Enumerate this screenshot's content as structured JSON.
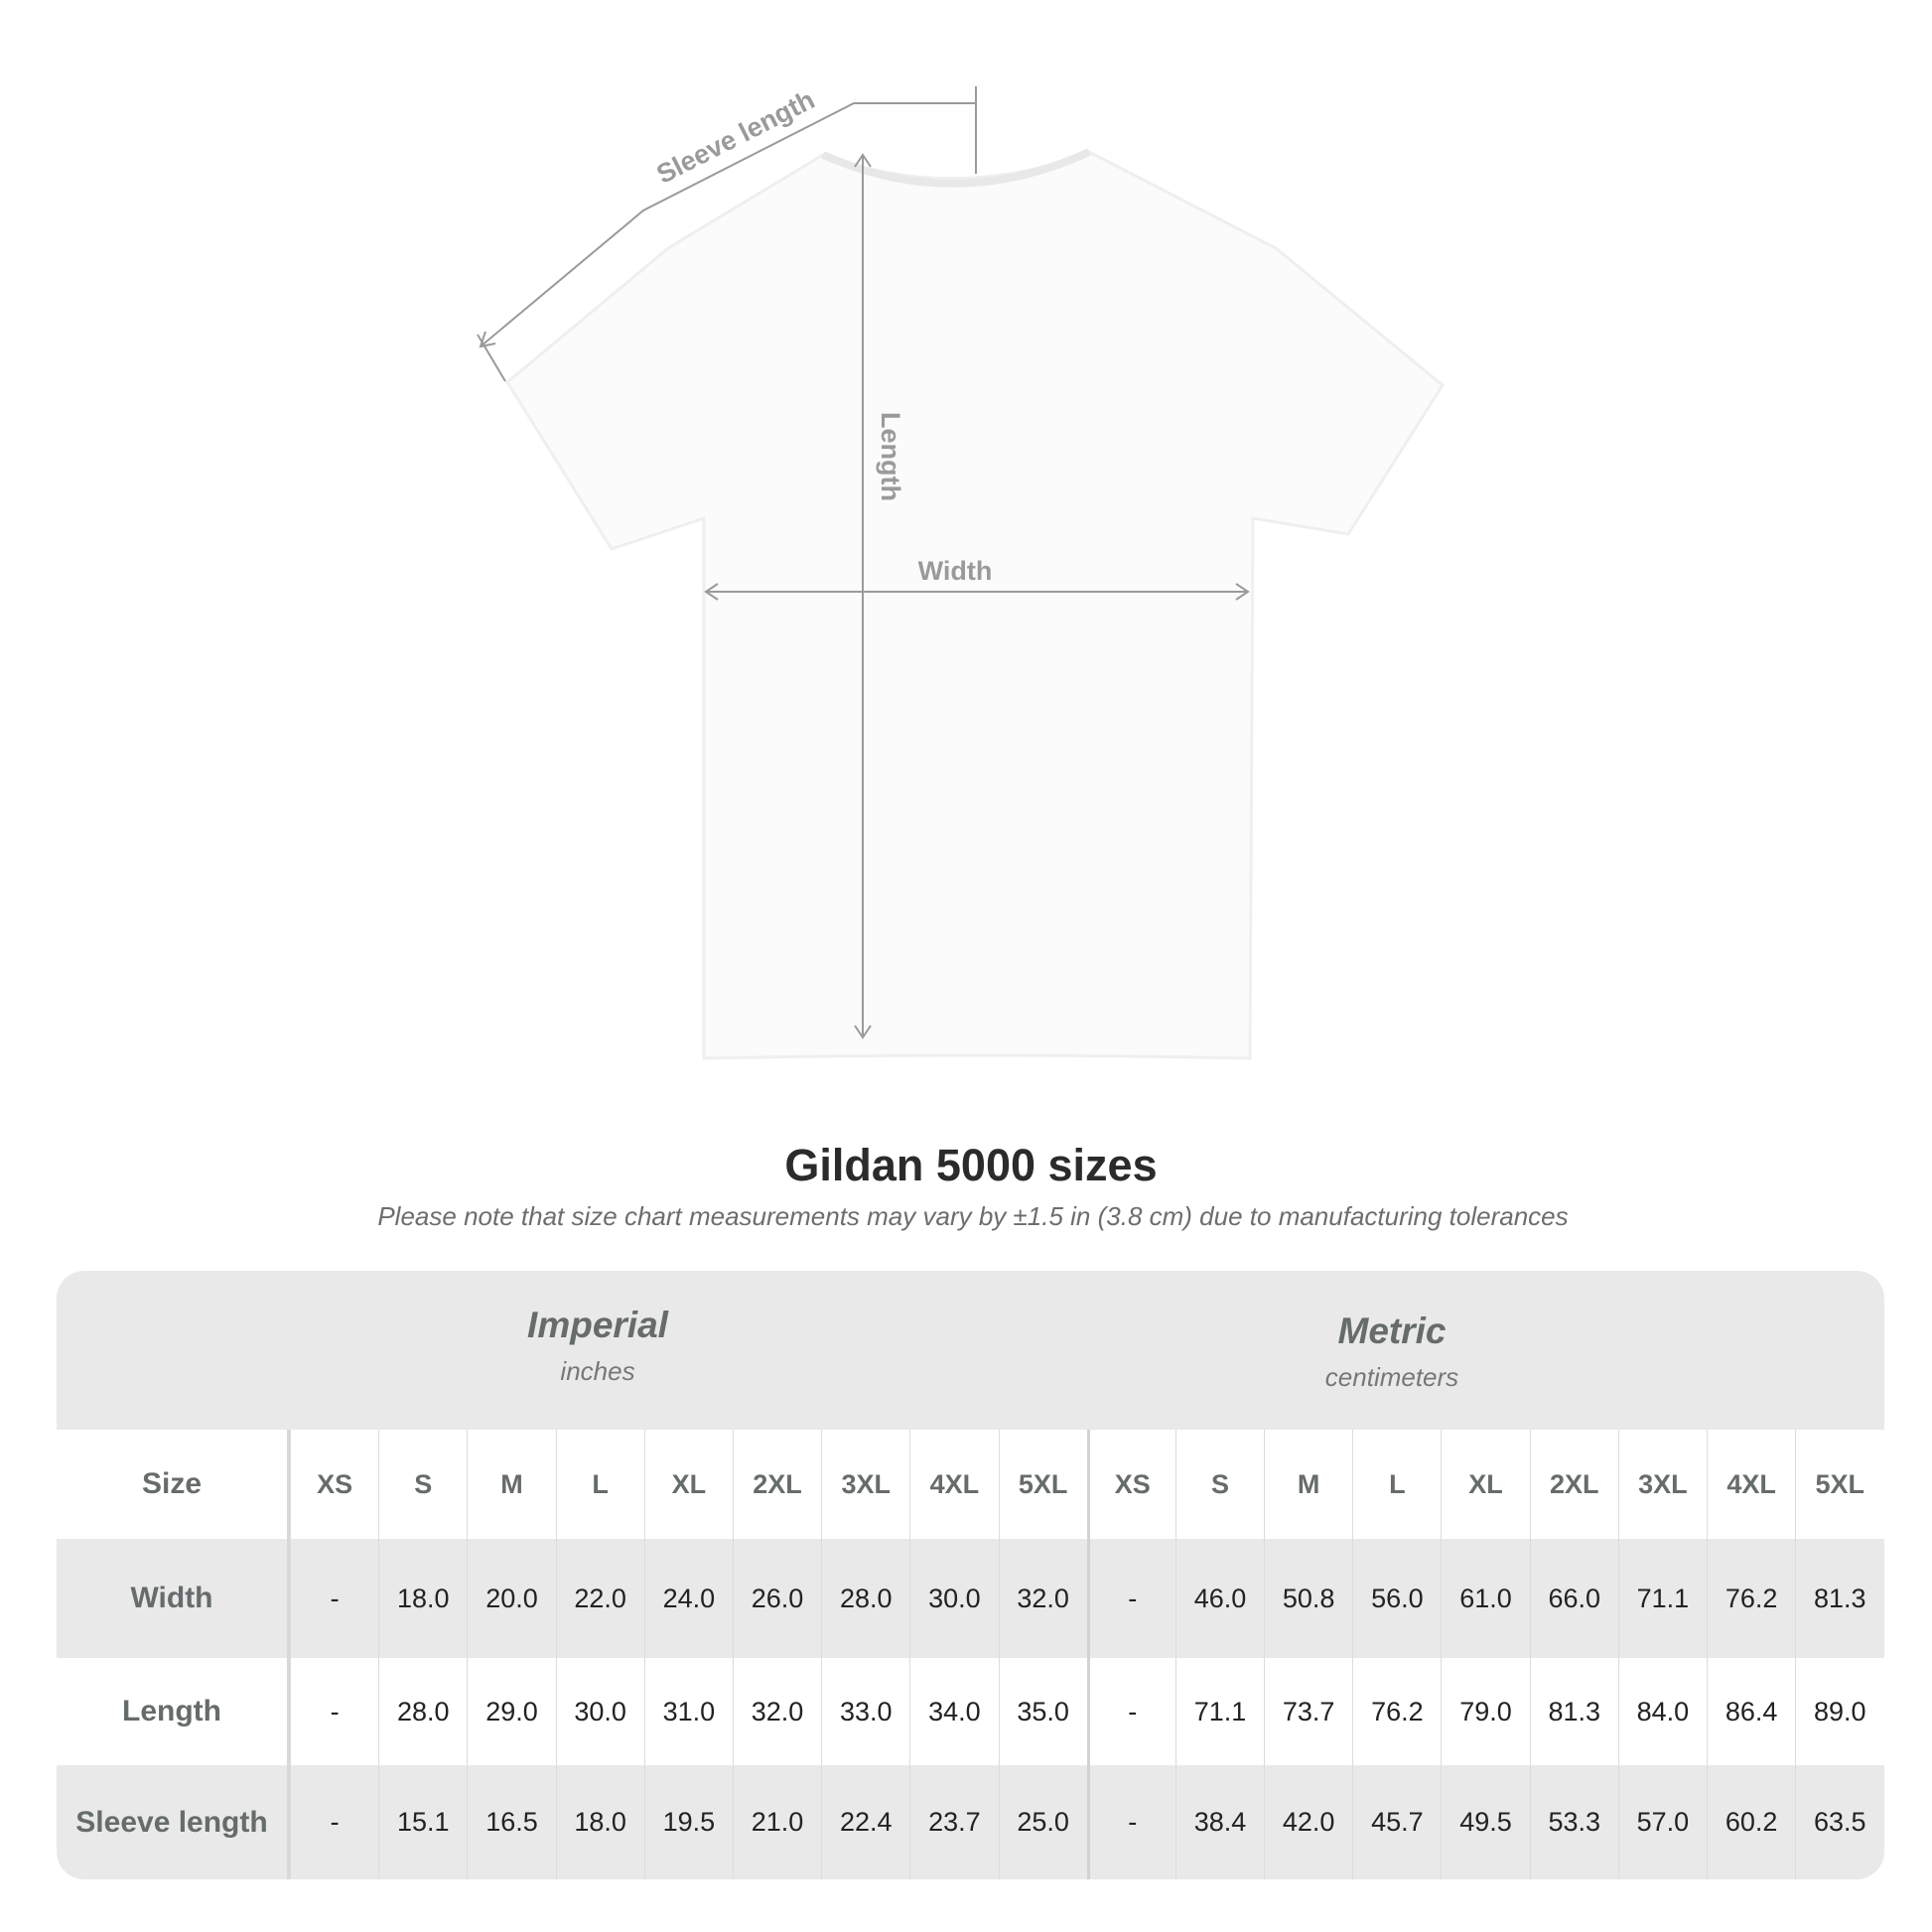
{
  "diagram": {
    "labels": {
      "sleeve": "Sleeve length",
      "length": "Length",
      "width": "Width"
    }
  },
  "title": "Gildan 5000 sizes",
  "note": "Please note that size chart measurements may vary by ±1.5 in (3.8 cm) due to manufacturing tolerances",
  "table": {
    "imperial": {
      "title": "Imperial",
      "unit": "inches"
    },
    "metric": {
      "title": "Metric",
      "unit": "centimeters"
    },
    "size_label": "Size",
    "sizes": [
      "XS",
      "S",
      "M",
      "L",
      "XL",
      "2XL",
      "3XL",
      "4XL",
      "5XL"
    ],
    "rows": [
      {
        "label": "Width",
        "imperial": [
          "-",
          "18.0",
          "20.0",
          "22.0",
          "24.0",
          "26.0",
          "28.0",
          "30.0",
          "32.0"
        ],
        "metric": [
          "-",
          "46.0",
          "50.8",
          "56.0",
          "61.0",
          "66.0",
          "71.1",
          "76.2",
          "81.3"
        ]
      },
      {
        "label": "Length",
        "imperial": [
          "-",
          "28.0",
          "29.0",
          "30.0",
          "31.0",
          "32.0",
          "33.0",
          "34.0",
          "35.0"
        ],
        "metric": [
          "-",
          "71.1",
          "73.7",
          "76.2",
          "79.0",
          "81.3",
          "84.0",
          "86.4",
          "89.0"
        ]
      },
      {
        "label": "Sleeve length",
        "imperial": [
          "-",
          "15.1",
          "16.5",
          "18.0",
          "19.5",
          "21.0",
          "22.4",
          "23.7",
          "25.0"
        ],
        "metric": [
          "-",
          "38.4",
          "42.0",
          "45.7",
          "49.5",
          "53.3",
          "57.0",
          "60.2",
          "63.5"
        ]
      }
    ]
  },
  "colors": {
    "band": "#e9e9e9",
    "label": "#666b6b",
    "guide": "#9a9a9a"
  }
}
